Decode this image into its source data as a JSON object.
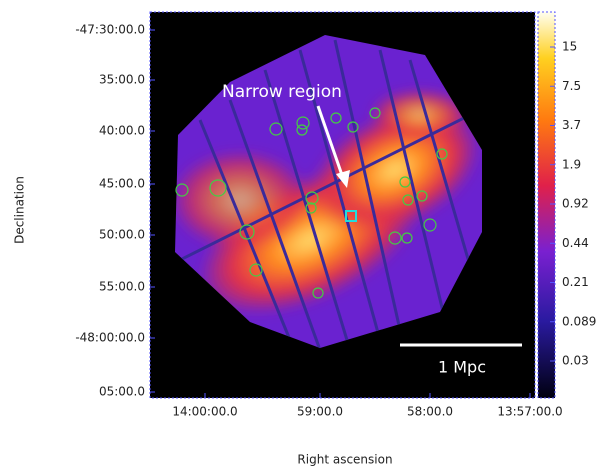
{
  "figure": {
    "y_axis_title": "Declination",
    "x_axis_title": "Right ascension",
    "y_tick_labels": [
      "-47:30:00.0",
      "35:00.0",
      "40:00.0",
      "45:00.0",
      "50:00.0",
      "55:00.0",
      "-48:00:00.0",
      "05:00.0"
    ],
    "x_tick_labels": [
      "14:00:00.0",
      "59:00.0",
      "58:00.0",
      "13:57:00.0"
    ],
    "colorbar_labels": [
      "15",
      "7.5",
      "3.7",
      "1.9",
      "0.92",
      "0.44",
      "0.21",
      "0.089",
      "0.03"
    ],
    "annotation": "Narrow region",
    "scale_bar": "1 Mpc"
  }
}
